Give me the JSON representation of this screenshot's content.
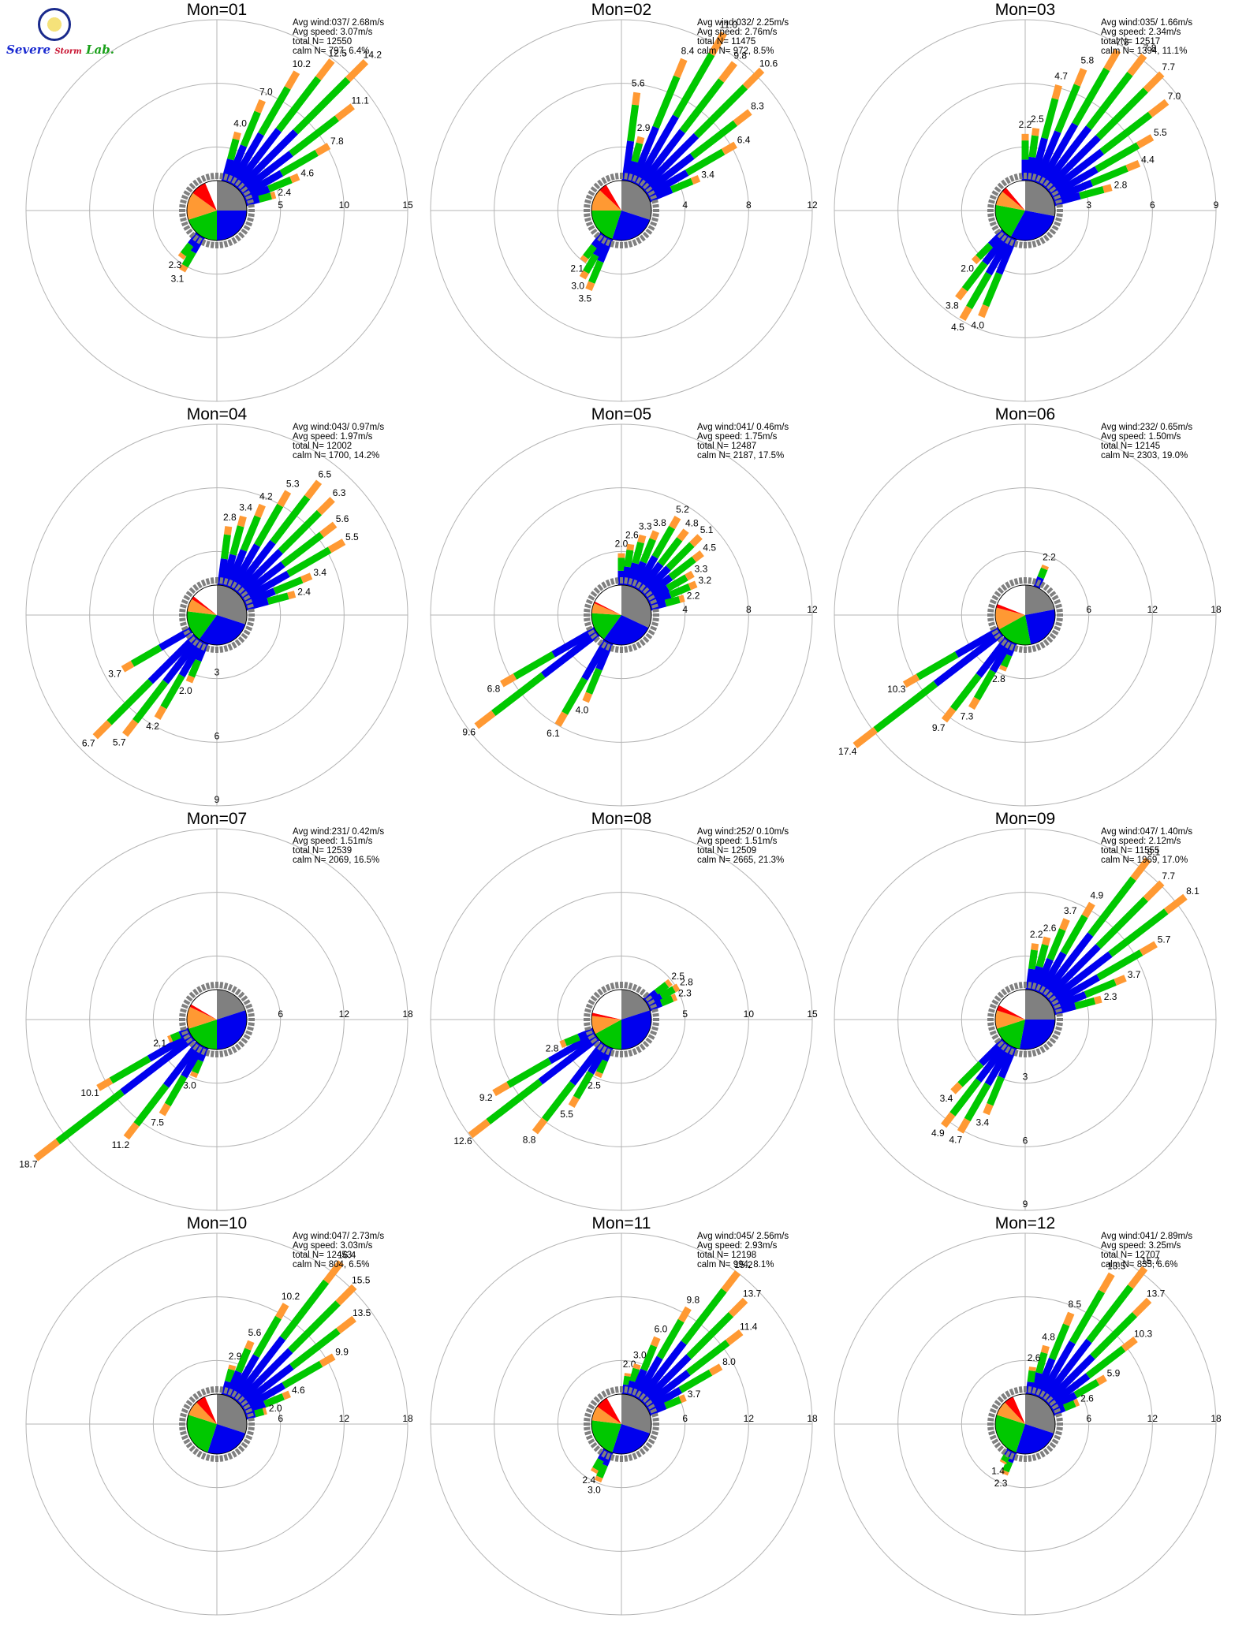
{
  "logo": {
    "line1": "Severe",
    "line2": "Storm",
    "line3": "Lab."
  },
  "colors": {
    "white": "#ffffff",
    "gray": "#808080",
    "blue": "#0000ee",
    "green": "#00c800",
    "orange": "#ff9933",
    "red": "#ff0000",
    "grid": "#b4b4b4"
  },
  "chart_data": [
    {
      "type": "windrose",
      "title": "Mon=01",
      "stats": [
        "Avg wind:037/ 2.68m/s",
        "Avg speed: 3.07m/s",
        "total N=      12550",
        "calm N=   797,   6.4%"
      ],
      "rmax": 15,
      "ring_labels": [
        "5",
        "10",
        "15"
      ],
      "ring_label_side": "east",
      "pie": [
        25.0,
        25.0,
        20.0,
        15.0,
        8.6,
        6.4
      ],
      "bars": [
        {
          "dir": 22.5,
          "value": 7.0,
          "label": "7.0"
        },
        {
          "dir": 30,
          "value": 10.2,
          "label": "10.2"
        },
        {
          "dir": 37.5,
          "value": 12.5,
          "label": "12.5"
        },
        {
          "dir": 45,
          "value": 14.2,
          "label": "14.2"
        },
        {
          "dir": 52.5,
          "value": 11.1,
          "label": "11.1"
        },
        {
          "dir": 60,
          "value": 7.8,
          "label": "7.8"
        },
        {
          "dir": 67.5,
          "value": 4.6,
          "label": "4.6"
        },
        {
          "dir": 75,
          "value": 2.4,
          "label": "2.4"
        },
        {
          "dir": 15,
          "value": 4.0,
          "label": "4.0"
        },
        {
          "dir": 210,
          "value": 3.1,
          "label": "3.1"
        },
        {
          "dir": 217.5,
          "value": 2.3,
          "label": "2.3"
        }
      ]
    },
    {
      "type": "windrose",
      "title": "Mon=02",
      "stats": [
        "Avg wind:032/ 2.25m/s",
        "Avg speed: 2.76m/s",
        "total N=      11475",
        "calm N=   972,   8.5%"
      ],
      "rmax": 12,
      "ring_labels": [
        "4",
        "8",
        "12"
      ],
      "ring_label_side": "east",
      "pie": [
        30.0,
        25.0,
        20.0,
        12.0,
        4.5,
        8.5
      ],
      "bars": [
        {
          "dir": 7.5,
          "value": 5.6,
          "label": "5.6"
        },
        {
          "dir": 22.5,
          "value": 8.4,
          "label": "8.4"
        },
        {
          "dir": 30,
          "value": 11.0,
          "label": "11.0"
        },
        {
          "dir": 37.5,
          "value": 9.8,
          "label": "9.8"
        },
        {
          "dir": 45,
          "value": 10.6,
          "label": "10.6"
        },
        {
          "dir": 52.5,
          "value": 8.3,
          "label": "8.3"
        },
        {
          "dir": 60,
          "value": 6.4,
          "label": "6.4"
        },
        {
          "dir": 67.5,
          "value": 3.4,
          "label": "3.4"
        },
        {
          "dir": 15,
          "value": 2.9,
          "label": "2.9"
        },
        {
          "dir": 202.5,
          "value": 3.5,
          "label": "3.5"
        },
        {
          "dir": 210,
          "value": 3.0,
          "label": "3.0"
        },
        {
          "dir": 217.5,
          "value": 2.1,
          "label": "2.1"
        }
      ]
    },
    {
      "type": "windrose",
      "title": "Mon=03",
      "stats": [
        "Avg wind:035/ 1.66m/s",
        "Avg speed: 2.34m/s",
        "total N=      12517",
        "calm N=  1394,  11.1%"
      ],
      "rmax": 9,
      "ring_labels": [
        "3",
        "6",
        "9"
      ],
      "ring_label_side": "east",
      "pie": [
        28.0,
        30.0,
        20.0,
        8.0,
        2.9,
        11.1
      ],
      "bars": [
        {
          "dir": 22.5,
          "value": 5.8,
          "label": "5.8"
        },
        {
          "dir": 30,
          "value": 7.3,
          "label": "7.3"
        },
        {
          "dir": 37.5,
          "value": 7.8,
          "label": "7.8"
        },
        {
          "dir": 45,
          "value": 7.7,
          "label": "7.7"
        },
        {
          "dir": 52.5,
          "value": 7.0,
          "label": "7.0"
        },
        {
          "dir": 60,
          "value": 5.5,
          "label": "5.5"
        },
        {
          "dir": 67.5,
          "value": 4.4,
          "label": "4.4"
        },
        {
          "dir": 75,
          "value": 2.8,
          "label": "2.8"
        },
        {
          "dir": 15,
          "value": 4.7,
          "label": "4.7"
        },
        {
          "dir": 7.5,
          "value": 2.5,
          "label": "2.5"
        },
        {
          "dir": 0,
          "value": 2.2,
          "label": "2.2"
        },
        {
          "dir": 202.5,
          "value": 4.0,
          "label": "4.0"
        },
        {
          "dir": 210,
          "value": 4.5,
          "label": "4.5"
        },
        {
          "dir": 217.5,
          "value": 3.8,
          "label": "3.8"
        },
        {
          "dir": 225,
          "value": 2.0,
          "label": "2.0"
        }
      ]
    },
    {
      "type": "windrose",
      "title": "Mon=04",
      "stats": [
        "Avg wind:043/ 0.97m/s",
        "Avg speed: 1.97m/s",
        "total N=      12002",
        "calm N=  1700,  14.2%"
      ],
      "rmax": 9,
      "ring_labels": [
        "3",
        "6",
        "9"
      ],
      "ring_label_side": "south",
      "pie": [
        30.0,
        30.0,
        17.0,
        7.0,
        1.8,
        14.2
      ],
      "bars": [
        {
          "dir": 15,
          "value": 3.4,
          "label": "3.4"
        },
        {
          "dir": 22.5,
          "value": 4.2,
          "label": "4.2"
        },
        {
          "dir": 30,
          "value": 5.3,
          "label": "5.3"
        },
        {
          "dir": 37.5,
          "value": 6.5,
          "label": "6.5"
        },
        {
          "dir": 45,
          "value": 6.3,
          "label": "6.3"
        },
        {
          "dir": 52.5,
          "value": 5.6,
          "label": "5.6"
        },
        {
          "dir": 60,
          "value": 5.5,
          "label": "5.5"
        },
        {
          "dir": 67.5,
          "value": 3.4,
          "label": "3.4"
        },
        {
          "dir": 75,
          "value": 2.4,
          "label": "2.4"
        },
        {
          "dir": 7.5,
          "value": 2.8,
          "label": "2.8"
        },
        {
          "dir": 202.5,
          "value": 2.0,
          "label": "2.0"
        },
        {
          "dir": 210,
          "value": 4.2,
          "label": "4.2"
        },
        {
          "dir": 217.5,
          "value": 5.7,
          "label": "5.7"
        },
        {
          "dir": 225,
          "value": 6.7,
          "label": "6.7"
        },
        {
          "dir": 240,
          "value": 3.7,
          "label": "3.7"
        }
      ]
    },
    {
      "type": "windrose",
      "title": "Mon=05",
      "stats": [
        "Avg wind:041/ 0.46m/s",
        "Avg speed: 1.75m/s",
        "total N=      12487",
        "calm N=  2187,  17.5%"
      ],
      "rmax": 12,
      "ring_labels": [
        "4",
        "8",
        "12"
      ],
      "ring_label_side": "east",
      "pie": [
        32.0,
        28.0,
        16.0,
        5.5,
        1.0,
        17.5
      ],
      "bars": [
        {
          "dir": 0,
          "value": 2.0,
          "label": "2.0"
        },
        {
          "dir": 7.5,
          "value": 2.6,
          "label": "2.6"
        },
        {
          "dir": 15,
          "value": 3.3,
          "label": "3.3"
        },
        {
          "dir": 22.5,
          "value": 3.8,
          "label": "3.8"
        },
        {
          "dir": 30,
          "value": 5.2,
          "label": "5.2"
        },
        {
          "dir": 37.5,
          "value": 4.8,
          "label": "4.8"
        },
        {
          "dir": 45,
          "value": 5.1,
          "label": "5.1"
        },
        {
          "dir": 52.5,
          "value": 4.5,
          "label": "4.5"
        },
        {
          "dir": 60,
          "value": 3.3,
          "label": "3.3"
        },
        {
          "dir": 67.5,
          "value": 3.2,
          "label": "3.2"
        },
        {
          "dir": 75,
          "value": 2.2,
          "label": "2.2"
        },
        {
          "dir": 202.5,
          "value": 4.0,
          "label": "4.0"
        },
        {
          "dir": 210,
          "value": 6.1,
          "label": "6.1"
        },
        {
          "dir": 232.5,
          "value": 9.6,
          "label": "9.6"
        },
        {
          "dir": 240,
          "value": 6.8,
          "label": "6.8"
        }
      ]
    },
    {
      "type": "windrose",
      "title": "Mon=06",
      "stats": [
        "Avg wind:232/ 0.65m/s",
        "Avg speed: 1.50m/s",
        "total N=      12145",
        "calm N=  2303,  19.0%"
      ],
      "rmax": 18,
      "ring_labels": [
        "6",
        "12",
        "18"
      ],
      "ring_label_side": "east",
      "pie": [
        22.0,
        25.0,
        20.0,
        12.0,
        2.0,
        19.0
      ],
      "bars": [
        {
          "dir": 22.5,
          "value": 2.2,
          "label": "2.2"
        },
        {
          "dir": 202.5,
          "value": 2.8,
          "label": "2.8"
        },
        {
          "dir": 210,
          "value": 7.3,
          "label": "7.3"
        },
        {
          "dir": 217.5,
          "value": 9.7,
          "label": "9.7"
        },
        {
          "dir": 232.5,
          "value": 17.4,
          "label": "17.4"
        },
        {
          "dir": 240,
          "value": 10.3,
          "label": "10.3"
        }
      ]
    },
    {
      "type": "windrose",
      "title": "Mon=07",
      "stats": [
        "Avg wind:231/ 0.42m/s",
        "Avg speed: 1.51m/s",
        "total N=      12539",
        "calm N=  2069,  16.5%"
      ],
      "rmax": 18,
      "ring_labels": [
        "6",
        "12",
        "18"
      ],
      "ring_label_side": "east",
      "pie": [
        20.0,
        30.0,
        20.0,
        12.0,
        1.5,
        16.5
      ],
      "bars": [
        {
          "dir": 202.5,
          "value": 3.0,
          "label": "3.0"
        },
        {
          "dir": 210,
          "value": 7.5,
          "label": "7.5"
        },
        {
          "dir": 217.5,
          "value": 11.2,
          "label": "11.2"
        },
        {
          "dir": 232.5,
          "value": 18.7,
          "label": "18.7"
        },
        {
          "dir": 240,
          "value": 10.1,
          "label": "10.1"
        },
        {
          "dir": 247.5,
          "value": 2.1,
          "label": "2.1"
        }
      ]
    },
    {
      "type": "windrose",
      "title": "Mon=08",
      "stats": [
        "Avg wind:252/ 0.10m/s",
        "Avg speed: 1.51m/s",
        "total N=      12509",
        "calm N=  2665,  21.3%"
      ],
      "rmax": 15,
      "ring_labels": [
        "5",
        "10",
        "15"
      ],
      "ring_label_side": "east",
      "pie": [
        20.0,
        30.0,
        17.0,
        10.0,
        1.7,
        21.3
      ],
      "bars": [
        {
          "dir": 52.5,
          "value": 2.5,
          "label": "2.5"
        },
        {
          "dir": 60,
          "value": 2.8,
          "label": "2.8"
        },
        {
          "dir": 67.5,
          "value": 2.3,
          "label": "2.3"
        },
        {
          "dir": 202.5,
          "value": 2.5,
          "label": "2.5"
        },
        {
          "dir": 210,
          "value": 5.5,
          "label": "5.5"
        },
        {
          "dir": 217.5,
          "value": 8.8,
          "label": "8.8"
        },
        {
          "dir": 232.5,
          "value": 12.6,
          "label": "12.6"
        },
        {
          "dir": 240,
          "value": 9.2,
          "label": "9.2"
        },
        {
          "dir": 247.5,
          "value": 2.8,
          "label": "2.8"
        }
      ]
    },
    {
      "type": "windrose",
      "title": "Mon=09",
      "stats": [
        "Avg wind:047/ 1.40m/s",
        "Avg speed: 2.12m/s",
        "total N=      11555",
        "calm N=  1969,  17.0%"
      ],
      "rmax": 9,
      "ring_labels": [
        "3",
        "6",
        "9"
      ],
      "ring_label_side": "south",
      "pie": [
        25.0,
        28.0,
        17.0,
        10.0,
        3.0,
        17.0
      ],
      "bars": [
        {
          "dir": 7.5,
          "value": 2.2,
          "label": "2.2"
        },
        {
          "dir": 15,
          "value": 2.6,
          "label": "2.6"
        },
        {
          "dir": 22.5,
          "value": 3.7,
          "label": "3.7"
        },
        {
          "dir": 30,
          "value": 4.9,
          "label": "4.9"
        },
        {
          "dir": 37.5,
          "value": 8.1,
          "label": "8.1"
        },
        {
          "dir": 45,
          "value": 7.7,
          "label": "7.7"
        },
        {
          "dir": 52.5,
          "value": 8.1,
          "label": "8.1"
        },
        {
          "dir": 60,
          "value": 5.7,
          "label": "5.7"
        },
        {
          "dir": 67.5,
          "value": 3.7,
          "label": "3.7"
        },
        {
          "dir": 75,
          "value": 2.3,
          "label": "2.3"
        },
        {
          "dir": 202.5,
          "value": 3.4,
          "label": "3.4"
        },
        {
          "dir": 210,
          "value": 4.7,
          "label": "4.7"
        },
        {
          "dir": 217.5,
          "value": 4.9,
          "label": "4.9"
        },
        {
          "dir": 225,
          "value": 3.4,
          "label": "3.4"
        }
      ]
    },
    {
      "type": "windrose",
      "title": "Mon=10",
      "stats": [
        "Avg wind:047/ 2.73m/s",
        "Avg speed: 3.03m/s",
        "total N=      12453",
        "calm N=   804,   6.5%"
      ],
      "rmax": 18,
      "ring_labels": [
        "6",
        "12",
        "18"
      ],
      "ring_label_side": "east",
      "pie": [
        30.0,
        25.0,
        25.0,
        8.0,
        5.5,
        6.5
      ],
      "bars": [
        {
          "dir": 15,
          "value": 2.9,
          "label": "2.9"
        },
        {
          "dir": 22.5,
          "value": 5.6,
          "label": "5.6"
        },
        {
          "dir": 30,
          "value": 10.2,
          "label": "10.2"
        },
        {
          "dir": 37.5,
          "value": 16.4,
          "label": "16.4"
        },
        {
          "dir": 45,
          "value": 15.5,
          "label": "15.5"
        },
        {
          "dir": 52.5,
          "value": 13.5,
          "label": "13.5"
        },
        {
          "dir": 60,
          "value": 9.9,
          "label": "9.9"
        },
        {
          "dir": 67.5,
          "value": 4.6,
          "label": "4.6"
        },
        {
          "dir": 75,
          "value": 2.0,
          "label": "2.0"
        }
      ]
    },
    {
      "type": "windrose",
      "title": "Mon=11",
      "stats": [
        "Avg wind:045/ 2.56m/s",
        "Avg speed: 2.93m/s",
        "total N=      12198",
        "calm N=   994,   8.1%"
      ],
      "rmax": 18,
      "ring_labels": [
        "6",
        "12",
        "18"
      ],
      "ring_label_side": "east",
      "pie": [
        30.0,
        25.0,
        22.0,
        8.0,
        6.9,
        8.1
      ],
      "bars": [
        {
          "dir": 7.5,
          "value": 2.0,
          "label": "2.0"
        },
        {
          "dir": 15,
          "value": 3.0,
          "label": "3.0"
        },
        {
          "dir": 22.5,
          "value": 6.0,
          "label": "6.0"
        },
        {
          "dir": 30,
          "value": 9.8,
          "label": "9.8"
        },
        {
          "dir": 37.5,
          "value": 15.2,
          "label": "15.2"
        },
        {
          "dir": 45,
          "value": 13.7,
          "label": "13.7"
        },
        {
          "dir": 52.5,
          "value": 11.4,
          "label": "11.4"
        },
        {
          "dir": 60,
          "value": 8.0,
          "label": "8.0"
        },
        {
          "dir": 67.5,
          "value": 3.7,
          "label": "3.7"
        },
        {
          "dir": 202.5,
          "value": 3.0,
          "label": "3.0"
        },
        {
          "dir": 210,
          "value": 2.4,
          "label": "2.4"
        }
      ]
    },
    {
      "type": "windrose",
      "title": "Mon=12",
      "stats": [
        "Avg wind:041/ 2.89m/s",
        "Avg speed: 3.25m/s",
        "total N=      12707",
        "calm N=   835,   6.6%"
      ],
      "rmax": 18,
      "ring_labels": [
        "6",
        "12",
        "18"
      ],
      "ring_label_side": "east",
      "pie": [
        30.0,
        25.0,
        25.0,
        8.0,
        5.4,
        6.6
      ],
      "bars": [
        {
          "dir": 15,
          "value": 4.8,
          "label": "4.8"
        },
        {
          "dir": 22.5,
          "value": 8.5,
          "label": "8.5"
        },
        {
          "dir": 30,
          "value": 13.5,
          "label": "13.5"
        },
        {
          "dir": 37.5,
          "value": 15.7,
          "label": "15.7"
        },
        {
          "dir": 45,
          "value": 13.7,
          "label": "13.7"
        },
        {
          "dir": 52.5,
          "value": 10.3,
          "label": "10.3"
        },
        {
          "dir": 60,
          "value": 5.9,
          "label": "5.9"
        },
        {
          "dir": 67.5,
          "value": 2.6,
          "label": "2.6"
        },
        {
          "dir": 7.5,
          "value": 2.6,
          "label": "2.6"
        },
        {
          "dir": 202.5,
          "value": 2.3,
          "label": "2.3"
        },
        {
          "dir": 210,
          "value": 1.4,
          "label": "1.4"
        }
      ]
    }
  ]
}
